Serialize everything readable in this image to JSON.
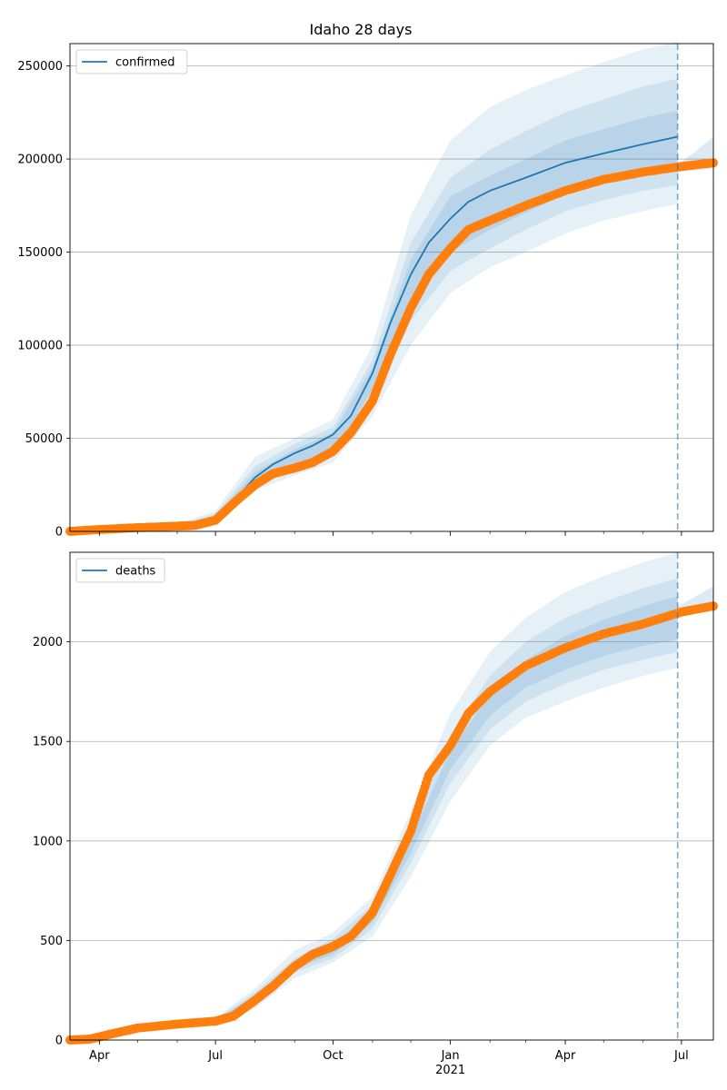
{
  "figure_title": "Idaho 28 days",
  "chart_data": [
    {
      "type": "line",
      "title": "Idaho 28 days",
      "legend": {
        "entries": [
          "confirmed"
        ],
        "placement": "top-left"
      },
      "series": [
        {
          "name": "confirmed",
          "color": "#1f77b4",
          "x": [
            "2020-03-09",
            "2020-04-01",
            "2020-05-01",
            "2020-06-01",
            "2020-06-15",
            "2020-07-01",
            "2020-07-15",
            "2020-08-01",
            "2020-08-15",
            "2020-09-01",
            "2020-09-15",
            "2020-10-01",
            "2020-10-15",
            "2020-11-01",
            "2020-11-15",
            "2020-12-01",
            "2020-12-15",
            "2021-01-01",
            "2021-01-15",
            "2021-02-01",
            "2021-03-01",
            "2021-04-01",
            "2021-05-01",
            "2021-06-01",
            "2021-06-28"
          ],
          "y": [
            0,
            1000,
            2000,
            3000,
            3500,
            6500,
            16000,
            29000,
            36000,
            42000,
            46000,
            52000,
            62000,
            85000,
            112000,
            138000,
            155000,
            168000,
            177000,
            183000,
            190000,
            198000,
            203000,
            208000,
            212000
          ]
        }
      ],
      "observed": {
        "color": "#ff7f0e",
        "x": [
          "2020-03-09",
          "2020-04-01",
          "2020-05-01",
          "2020-06-01",
          "2020-06-15",
          "2020-07-01",
          "2020-07-15",
          "2020-08-01",
          "2020-08-15",
          "2020-09-01",
          "2020-09-15",
          "2020-10-01",
          "2020-10-15",
          "2020-11-01",
          "2020-11-15",
          "2020-12-01",
          "2020-12-15",
          "2021-01-01",
          "2021-01-15",
          "2021-02-01",
          "2021-03-01",
          "2021-04-01",
          "2021-05-01",
          "2021-06-01",
          "2021-07-01",
          "2021-07-26"
        ],
        "y": [
          0,
          1000,
          2000,
          2800,
          3200,
          6000,
          15000,
          25000,
          31000,
          34000,
          37000,
          43000,
          53000,
          70000,
          95000,
          120000,
          138000,
          152000,
          162000,
          167000,
          175000,
          183000,
          189000,
          193000,
          196000,
          198000
        ]
      },
      "bands": [
        {
          "x": [
            "2020-06-01",
            "2020-07-01",
            "2020-08-01",
            "2020-09-01",
            "2020-10-01",
            "2020-11-01",
            "2020-12-01",
            "2021-01-01",
            "2021-02-01",
            "2021-03-01",
            "2021-04-01",
            "2021-05-01",
            "2021-06-01",
            "2021-06-28"
          ],
          "lower": [
            2000,
            5000,
            22000,
            30000,
            37000,
            62000,
            100000,
            128000,
            142000,
            150000,
            160000,
            167000,
            172000,
            176000
          ],
          "upper": [
            4000,
            11000,
            40000,
            50000,
            60000,
            100000,
            170000,
            210000,
            228000,
            237000,
            245000,
            252000,
            259000,
            263000
          ]
        },
        {
          "x": [
            "2020-06-01",
            "2020-07-01",
            "2020-08-01",
            "2020-09-01",
            "2020-10-01",
            "2020-11-01",
            "2020-12-01",
            "2021-01-01",
            "2021-02-01",
            "2021-03-01",
            "2021-04-01",
            "2021-05-01",
            "2021-06-01",
            "2021-06-28"
          ],
          "lower": [
            2500,
            5500,
            24000,
            33000,
            40000,
            70000,
            113000,
            140000,
            152000,
            162000,
            172000,
            178000,
            183000,
            186000
          ],
          "upper": [
            3600,
            9500,
            35000,
            47000,
            56000,
            92000,
            155000,
            190000,
            205000,
            215000,
            225000,
            232000,
            239000,
            243000
          ]
        },
        {
          "x": [
            "2020-06-01",
            "2020-07-01",
            "2020-08-01",
            "2020-09-01",
            "2020-10-01",
            "2020-11-01",
            "2020-12-01",
            "2021-01-01",
            "2021-02-01",
            "2021-03-01",
            "2021-04-01",
            "2021-05-01",
            "2021-06-01",
            "2021-06-28"
          ],
          "lower": [
            2800,
            6000,
            26000,
            36000,
            42000,
            76000,
            122000,
            150000,
            162000,
            171000,
            181000,
            188000,
            193000,
            196000
          ],
          "upper": [
            3300,
            8200,
            32000,
            44000,
            53000,
            88000,
            146000,
            180000,
            191000,
            200000,
            210000,
            216000,
            222000,
            226000
          ]
        }
      ],
      "forecast_band": {
        "x": [
          "2021-06-28",
          "2021-07-10",
          "2021-07-26"
        ],
        "lower": [
          193000,
          194000,
          195000
        ],
        "upper": [
          197000,
          203000,
          212000
        ]
      },
      "vline": {
        "x": "2021-06-28",
        "color": "#1f77b4"
      },
      "xlim": [
        "2020-03-09",
        "2021-07-26"
      ],
      "ylim": [
        0,
        262000
      ],
      "yticks": [
        "0",
        "50000",
        "100000",
        "150000",
        "200000",
        "250000"
      ],
      "grid": "horizontal"
    },
    {
      "type": "line",
      "title": "",
      "legend": {
        "entries": [
          "deaths"
        ],
        "placement": "top-left"
      },
      "series": [
        {
          "name": "deaths",
          "color": "#1f77b4",
          "x": [],
          "y": []
        }
      ],
      "observed": {
        "color": "#ff7f0e",
        "x": [
          "2020-03-09",
          "2020-03-25",
          "2020-04-10",
          "2020-05-01",
          "2020-06-01",
          "2020-07-01",
          "2020-07-15",
          "2020-08-01",
          "2020-08-15",
          "2020-09-01",
          "2020-09-15",
          "2020-10-01",
          "2020-10-15",
          "2020-11-01",
          "2020-11-15",
          "2020-12-01",
          "2020-12-15",
          "2021-01-01",
          "2021-01-15",
          "2021-02-01",
          "2021-03-01",
          "2021-04-01",
          "2021-05-01",
          "2021-06-01",
          "2021-07-01",
          "2021-07-26"
        ],
        "y": [
          0,
          5,
          30,
          60,
          80,
          95,
          120,
          200,
          270,
          370,
          430,
          470,
          520,
          640,
          830,
          1050,
          1330,
          1480,
          1640,
          1750,
          1880,
          1970,
          2040,
          2090,
          2150,
          2180
        ]
      },
      "bands": [
        {
          "x": [
            "2020-07-01",
            "2020-08-01",
            "2020-09-01",
            "2020-10-01",
            "2020-11-01",
            "2020-12-01",
            "2021-01-01",
            "2021-02-01",
            "2021-03-01",
            "2021-04-01",
            "2021-05-01",
            "2021-06-01",
            "2021-06-28"
          ],
          "lower": [
            80,
            160,
            310,
            390,
            520,
            820,
            1200,
            1480,
            1620,
            1700,
            1770,
            1830,
            1870
          ],
          "upper": [
            110,
            260,
            450,
            540,
            720,
            1150,
            1640,
            1950,
            2120,
            2250,
            2330,
            2400,
            2450
          ]
        },
        {
          "x": [
            "2020-07-01",
            "2020-08-01",
            "2020-09-01",
            "2020-10-01",
            "2020-11-01",
            "2020-12-01",
            "2021-01-01",
            "2021-02-01",
            "2021-03-01",
            "2021-04-01",
            "2021-05-01",
            "2021-06-01",
            "2021-06-28"
          ],
          "lower": [
            85,
            180,
            340,
            410,
            560,
            890,
            1290,
            1560,
            1700,
            1790,
            1860,
            1910,
            1950
          ],
          "upper": [
            105,
            240,
            410,
            510,
            680,
            1080,
            1530,
            1830,
            2000,
            2120,
            2200,
            2270,
            2320
          ]
        },
        {
          "x": [
            "2020-07-01",
            "2020-08-01",
            "2020-09-01",
            "2020-10-01",
            "2020-11-01",
            "2020-12-01",
            "2021-01-01",
            "2021-02-01",
            "2021-03-01",
            "2021-04-01",
            "2021-05-01",
            "2021-06-01",
            "2021-06-28"
          ],
          "lower": [
            90,
            195,
            360,
            430,
            590,
            940,
            1360,
            1630,
            1770,
            1860,
            1930,
            1980,
            2010
          ],
          "upper": [
            100,
            225,
            390,
            485,
            640,
            1020,
            1450,
            1740,
            1910,
            2030,
            2110,
            2180,
            2230
          ]
        }
      ],
      "forecast_band": {
        "x": [
          "2021-06-28",
          "2021-07-10",
          "2021-07-26"
        ],
        "lower": [
          2140,
          2150,
          2160
        ],
        "upper": [
          2180,
          2220,
          2280
        ]
      },
      "vline": {
        "x": "2021-06-28",
        "color": "#1f77b4"
      },
      "xlim": [
        "2020-03-09",
        "2021-07-26"
      ],
      "ylim": [
        0,
        2450
      ],
      "yticks": [
        "0",
        "500",
        "1000",
        "1500",
        "2000"
      ],
      "xticks": [
        {
          "label": "Apr",
          "date": "2020-04-01"
        },
        {
          "label": "Jul",
          "date": "2020-07-01"
        },
        {
          "label": "Oct",
          "date": "2020-10-01"
        },
        {
          "label": "Jan",
          "date": "2021-01-01"
        },
        {
          "label": "Apr",
          "date": "2021-04-01"
        },
        {
          "label": "Jul",
          "date": "2021-07-01"
        }
      ],
      "xtick_year_label": "2021",
      "grid": "horizontal"
    }
  ]
}
